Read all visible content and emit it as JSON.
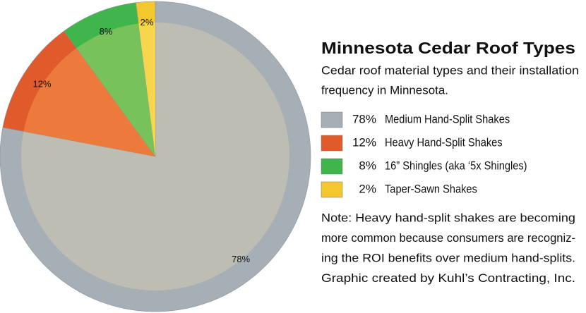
{
  "chart_data": {
    "type": "pie",
    "title": "Minnesota Cedar Roof Types",
    "subtitle_lines": [
      "Cedar roof material types and their installation",
      "frequency in Minnesota."
    ],
    "categories": [
      "Medium Hand-Split Shakes",
      "Heavy Hand-Split Shakes",
      "16” Shingles (aka ‘5x Shingles)",
      "Taper-Sawn Shakes"
    ],
    "values": [
      78,
      12,
      8,
      2
    ],
    "value_labels": [
      "78%",
      "12%",
      "8%",
      "2%"
    ],
    "colors": [
      "#a7afb6",
      "#e15a2c",
      "#3fb54b",
      "#f5c72f"
    ],
    "inner_colors": [
      "#bdbdb3",
      "#ec7a3d",
      "#77c25b",
      "#f7d54c"
    ],
    "note_lines": [
      "Note: Heavy hand-split shakes are becoming",
      "more common because consumers are recogniz-",
      "ing the ROI benefits over medium hand-splits.",
      "Graphic created by Kuhl’s Contracting, Inc."
    ]
  }
}
